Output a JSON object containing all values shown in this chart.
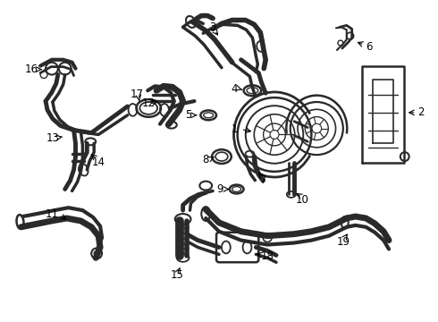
{
  "bg_color": "#ffffff",
  "line_color": "#2a2a2a",
  "text_color": "#000000",
  "figsize": [
    4.9,
    3.6
  ],
  "dpi": 100
}
